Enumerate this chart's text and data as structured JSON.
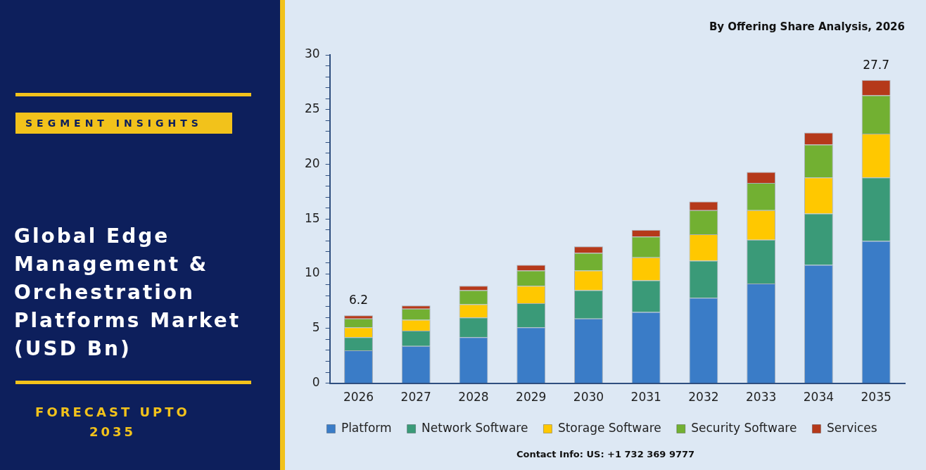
{
  "chart_data": {
    "type": "bar",
    "stacked": true,
    "title": "Global Edge Management & Orchestration Platforms Market (USD Bn)",
    "subtitle": "By Offering Share Analysis, 2026",
    "annotations": [
      "SEGMENT INSIGHTS",
      "FORECAST UPTO 2035",
      "Contact Info: US: +1 732 369 9777"
    ],
    "categories": [
      "2026",
      "2027",
      "2028",
      "2029",
      "2030",
      "2031",
      "2032",
      "2033",
      "2034",
      "2035"
    ],
    "series": [
      {
        "name": "Platform",
        "color": "#3a7cc7",
        "values": [
          3.0,
          3.4,
          4.2,
          5.1,
          5.9,
          6.5,
          7.8,
          9.1,
          10.8,
          13.0
        ]
      },
      {
        "name": "Network Software",
        "color": "#3a9a78",
        "values": [
          1.2,
          1.4,
          1.8,
          2.2,
          2.6,
          2.9,
          3.4,
          4.0,
          4.7,
          5.8
        ]
      },
      {
        "name": "Storage Software",
        "color": "#ffc800",
        "values": [
          0.9,
          1.0,
          1.2,
          1.6,
          1.8,
          2.1,
          2.4,
          2.7,
          3.3,
          4.0
        ]
      },
      {
        "name": "Security Software",
        "color": "#72b032",
        "values": [
          0.8,
          1.0,
          1.3,
          1.4,
          1.6,
          1.9,
          2.2,
          2.5,
          3.0,
          3.5
        ]
      },
      {
        "name": "Services",
        "color": "#b5391a",
        "values": [
          0.3,
          0.3,
          0.4,
          0.5,
          0.6,
          0.6,
          0.8,
          1.0,
          1.1,
          1.4
        ]
      }
    ],
    "totals": [
      "6.2",
      null,
      null,
      null,
      null,
      null,
      null,
      null,
      null,
      "27.7"
    ],
    "ylim": [
      0,
      30
    ],
    "yticks": [
      0,
      {
        "value": 1,
        "label": null
      },
      {
        "value": 2,
        "label": null
      },
      {
        "value": 3,
        "label": null
      },
      {
        "value": 4,
        "label": null
      },
      5,
      {
        "value": 6,
        "label": null
      },
      {
        "value": 7,
        "label": null
      },
      {
        "value": 8,
        "label": null
      },
      {
        "value": 9,
        "label": null
      },
      10,
      {
        "value": 11,
        "label": null
      },
      {
        "value": 12,
        "label": null
      },
      {
        "value": 13,
        "label": null
      },
      {
        "value": 14,
        "label": null
      },
      15,
      {
        "value": 16,
        "label": null
      },
      {
        "value": 17,
        "label": null
      },
      {
        "value": 18,
        "label": null
      },
      {
        "value": 19,
        "label": null
      },
      20,
      {
        "value": 21,
        "label": null
      },
      {
        "value": 22,
        "label": null
      },
      {
        "value": 23,
        "label": null
      },
      {
        "value": 24,
        "label": null
      },
      25,
      {
        "value": 26,
        "label": null
      },
      {
        "value": 27,
        "label": null
      },
      {
        "value": 28,
        "label": null
      },
      {
        "value": 29,
        "label": null
      },
      30
    ],
    "grid": false,
    "legend": "bottom"
  }
}
